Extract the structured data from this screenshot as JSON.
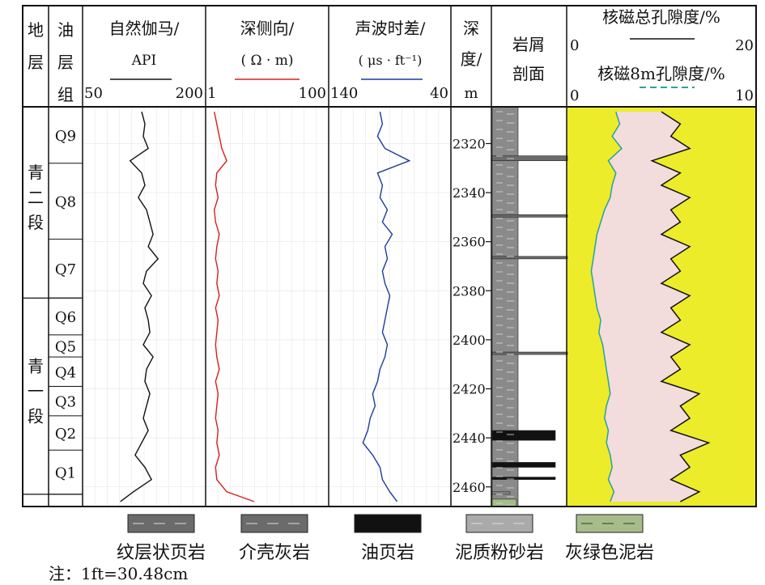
{
  "chart_data": {
    "type": "line",
    "depth_unit": "m",
    "depth_range": [
      2305,
      2468
    ],
    "depth_ticks": [
      2320,
      2340,
      2360,
      2380,
      2400,
      2420,
      2440,
      2460
    ],
    "headers": {
      "strat": "地层",
      "group": "油层组",
      "gr": {
        "title": "自然伽马/",
        "unit": "API",
        "min": "50",
        "max": "200"
      },
      "rd": {
        "title": "深侧向/",
        "unit": "( Ω · m)",
        "min": "1",
        "max": "100"
      },
      "ac": {
        "title": "声波时差/",
        "unit": "( μs · ft⁻¹)",
        "min": "140",
        "max": "40"
      },
      "depth": {
        "title": "深",
        "title2": "度/",
        "unit": "m"
      },
      "lith": {
        "title": "岩屑",
        "title2": "剖面"
      },
      "nmr": {
        "total": {
          "title": "核磁总孔隙度/%",
          "min": "0",
          "max": "20"
        },
        "eff": {
          "title": "核磁8m孔隙度/%",
          "min": "0",
          "max": "10"
        }
      }
    },
    "formations": [
      {
        "name": "青二段",
        "top": 2305,
        "bottom": 2383
      },
      {
        "name": "青一段",
        "top": 2383,
        "bottom": 2468
      }
    ],
    "zones": [
      {
        "name": "Q9",
        "top": 2305,
        "bottom": 2328
      },
      {
        "name": "Q8",
        "top": 2328,
        "bottom": 2359
      },
      {
        "name": "Q7",
        "top": 2359,
        "bottom": 2383
      },
      {
        "name": "Q6",
        "top": 2383,
        "bottom": 2398
      },
      {
        "name": "Q5",
        "top": 2398,
        "bottom": 2407
      },
      {
        "name": "Q4",
        "top": 2407,
        "bottom": 2419
      },
      {
        "name": "Q3",
        "top": 2419,
        "bottom": 2431
      },
      {
        "name": "Q2",
        "top": 2431,
        "bottom": 2445
      },
      {
        "name": "Q1",
        "top": 2445,
        "bottom": 2463
      }
    ],
    "series": {
      "gr": {
        "name": "自然伽马",
        "range": [
          50,
          200
        ],
        "color": "#111111",
        "depth": [
          2307,
          2312,
          2317,
          2322,
          2327,
          2332,
          2337,
          2342,
          2347,
          2352,
          2357,
          2362,
          2367,
          2372,
          2377,
          2382,
          2387,
          2392,
          2397,
          2402,
          2407,
          2412,
          2417,
          2422,
          2427,
          2432,
          2437,
          2442,
          2447,
          2452,
          2457,
          2462,
          2466
        ],
        "values": [
          122,
          126,
          124,
          130,
          108,
          122,
          126,
          118,
          128,
          132,
          136,
          130,
          142,
          128,
          124,
          134,
          126,
          130,
          132,
          124,
          136,
          128,
          126,
          132,
          128,
          124,
          130,
          122,
          114,
          126,
          134,
          112,
          96
        ]
      },
      "rd": {
        "name": "深侧向",
        "range": [
          1,
          100
        ],
        "color": "#d62020",
        "depth": [
          2307,
          2312,
          2317,
          2322,
          2327,
          2332,
          2337,
          2342,
          2347,
          2352,
          2357,
          2362,
          2367,
          2372,
          2377,
          2382,
          2387,
          2392,
          2397,
          2402,
          2407,
          2412,
          2417,
          2422,
          2427,
          2432,
          2437,
          2442,
          2447,
          2452,
          2457,
          2462,
          2466
        ],
        "values": [
          8,
          10,
          12,
          14,
          18,
          10,
          9,
          11,
          8,
          9,
          12,
          10,
          9,
          11,
          10,
          12,
          9,
          11,
          10,
          9,
          10,
          12,
          9,
          11,
          10,
          9,
          11,
          10,
          12,
          9,
          10,
          18,
          40
        ]
      },
      "ac": {
        "name": "声波时差",
        "range": [
          140,
          40
        ],
        "color": "#1f3a9e",
        "depth": [
          2307,
          2312,
          2317,
          2322,
          2327,
          2332,
          2337,
          2342,
          2347,
          2352,
          2357,
          2362,
          2367,
          2372,
          2377,
          2382,
          2387,
          2392,
          2397,
          2402,
          2407,
          2412,
          2417,
          2422,
          2427,
          2432,
          2437,
          2442,
          2447,
          2452,
          2457,
          2462,
          2466
        ],
        "values": [
          98,
          96,
          100,
          94,
          74,
          100,
          96,
          98,
          92,
          96,
          88,
          94,
          92,
          96,
          94,
          90,
          92,
          94,
          96,
          92,
          94,
          98,
          100,
          104,
          102,
          106,
          108,
          112,
          104,
          98,
          96,
          90,
          84
        ]
      },
      "nmr_total": {
        "name": "核磁总孔隙度",
        "range": [
          0,
          20
        ],
        "color": "#111111",
        "depth": [
          2307,
          2312,
          2317,
          2322,
          2327,
          2332,
          2337,
          2342,
          2347,
          2352,
          2357,
          2362,
          2367,
          2372,
          2377,
          2382,
          2387,
          2392,
          2397,
          2402,
          2407,
          2412,
          2417,
          2422,
          2427,
          2432,
          2437,
          2442,
          2447,
          2452,
          2457,
          2462,
          2466
        ],
        "values": [
          10,
          12,
          11,
          13,
          9,
          12,
          10,
          13,
          11,
          12,
          10,
          13,
          11,
          12,
          10,
          13,
          11,
          12,
          10,
          13,
          11,
          12,
          10,
          14,
          12,
          13,
          11,
          15,
          12,
          13,
          11,
          14,
          12
        ]
      },
      "nmr_eff": {
        "name": "核磁8m孔隙度",
        "range": [
          0,
          10
        ],
        "color": "#2aa198",
        "depth": [
          2307,
          2312,
          2317,
          2322,
          2327,
          2332,
          2337,
          2342,
          2347,
          2352,
          2357,
          2362,
          2367,
          2372,
          2377,
          2382,
          2387,
          2392,
          2397,
          2402,
          2407,
          2412,
          2417,
          2422,
          2427,
          2432,
          2437,
          2442,
          2447,
          2452,
          2457,
          2462,
          2466
        ],
        "values": [
          2.6,
          2.8,
          2.4,
          2.9,
          2.2,
          2.6,
          2.4,
          2.3,
          2.0,
          1.8,
          1.6,
          1.5,
          1.4,
          1.3,
          1.4,
          1.5,
          1.6,
          1.8,
          1.7,
          1.9,
          2.0,
          2.1,
          2.2,
          2.3,
          2.1,
          2.0,
          2.2,
          2.1,
          2.3,
          2.4,
          2.2,
          2.5,
          2.3
        ]
      }
    },
    "lithology_beds": [
      {
        "type": "泥质粉砂岩",
        "top": 2305,
        "bottom": 2468
      },
      {
        "type": "纹层状页岩",
        "top": 2325,
        "bottom": 2327
      },
      {
        "type": "纹层状页岩",
        "top": 2349,
        "bottom": 2350
      },
      {
        "type": "纹层状页岩",
        "top": 2366,
        "bottom": 2367
      },
      {
        "type": "纹层状页岩",
        "top": 2405,
        "bottom": 2406
      },
      {
        "type": "油页岩",
        "top": 2437,
        "bottom": 2441
      },
      {
        "type": "油页岩",
        "top": 2450,
        "bottom": 2452
      },
      {
        "type": "油页岩",
        "top": 2456,
        "bottom": 2457
      },
      {
        "type": "泥质粉砂岩",
        "top": 2462,
        "bottom": 2463
      },
      {
        "type": "灰绿色泥岩",
        "top": 2465,
        "bottom": 2468
      }
    ],
    "legend": [
      {
        "label": "纹层状页岩",
        "color": "#6b6b6b",
        "pattern": "dash"
      },
      {
        "label": "介壳灰岩",
        "color": "#6b6b6b",
        "pattern": "shell"
      },
      {
        "label": "油页岩",
        "color": "#111111",
        "pattern": "solid"
      },
      {
        "label": "泥质粉砂岩",
        "color": "#aaaaaa",
        "pattern": "dots"
      },
      {
        "label": "灰绿色泥岩",
        "color": "#a6bd8a",
        "pattern": "dash"
      }
    ],
    "colors": {
      "nmr_bg": "#ecec2a",
      "nmr_fill": "#f2dcdc",
      "lith_base": "#8a8a8a"
    },
    "note": "注：1ft=30.48cm"
  }
}
